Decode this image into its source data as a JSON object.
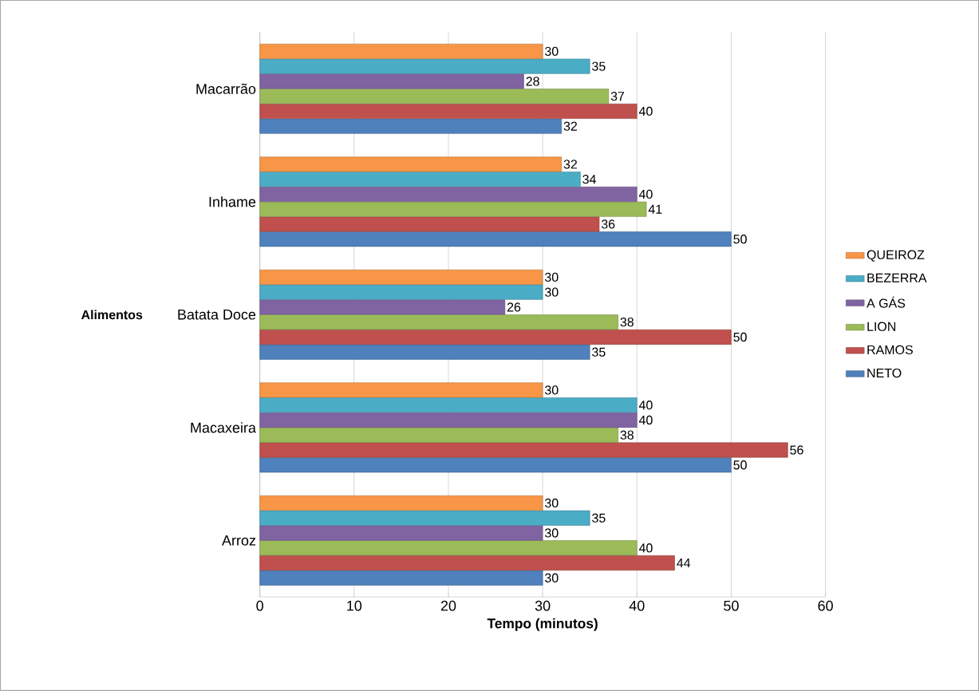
{
  "chart_data": {
    "type": "bar",
    "orientation": "horizontal",
    "xlabel": "Tempo (minutos)",
    "ylabel": "Alimentos",
    "categories": [
      "Macarrão",
      "Inhame",
      "Batata Doce",
      "Macaxeira",
      "Arroz"
    ],
    "series": [
      {
        "name": "NETO",
        "color": "#4f81bd",
        "values": [
          32,
          50,
          35,
          50,
          30
        ]
      },
      {
        "name": "RAMOS",
        "color": "#c0504d",
        "values": [
          40,
          36,
          50,
          56,
          44
        ]
      },
      {
        "name": "LION",
        "color": "#9bbb59",
        "values": [
          37,
          41,
          38,
          38,
          40
        ]
      },
      {
        "name": "A GÁS",
        "color": "#8064a2",
        "values": [
          28,
          40,
          26,
          40,
          30
        ]
      },
      {
        "name": "BEZERRA",
        "color": "#4bacc6",
        "values": [
          35,
          34,
          30,
          40,
          35
        ]
      },
      {
        "name": "QUEIROZ",
        "color": "#f79646",
        "values": [
          30,
          32,
          30,
          30,
          30
        ]
      }
    ],
    "xlim": [
      0,
      60
    ],
    "xticks": [
      0,
      10,
      20,
      30,
      40,
      50,
      60
    ],
    "grid": "x",
    "legend": "right",
    "data_labels": true
  }
}
